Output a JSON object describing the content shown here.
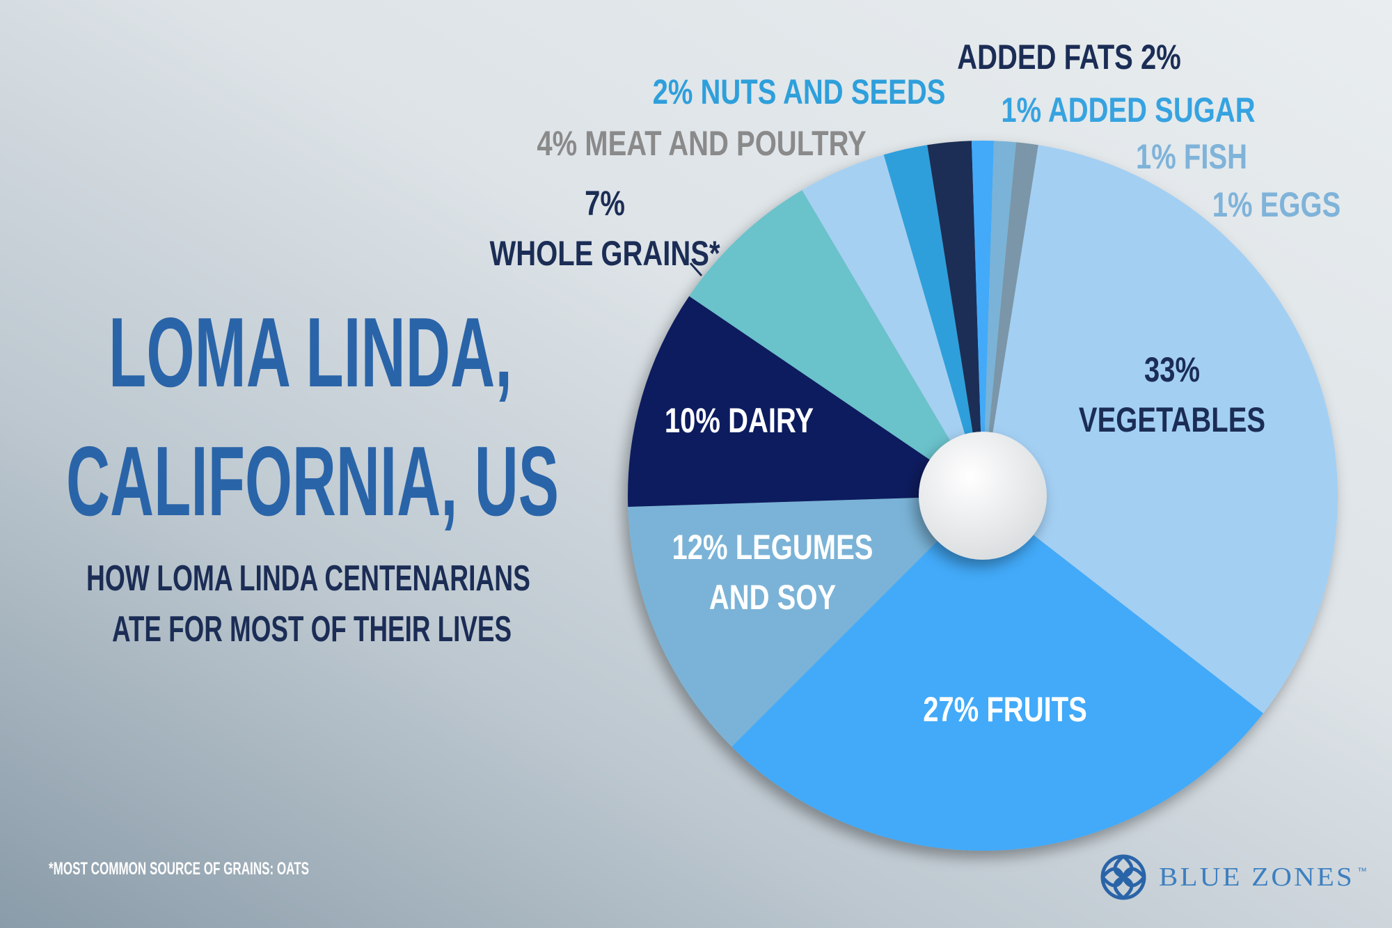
{
  "chart_data": {
    "type": "pie",
    "title": [
      "LOMA LINDA,",
      "CALIFORNIA, US"
    ],
    "subtitle": [
      "HOW LOMA LINDA CENTENARIANS",
      "ATE FOR MOST OF THEIR LIVES"
    ],
    "footnote": "*MOST COMMON SOURCE OF GRAINS: OATS",
    "categories": [
      "VEGETABLES",
      "FRUITS",
      "LEGUMES AND SOY",
      "DAIRY",
      "WHOLE GRAINS*",
      "MEAT AND POULTRY",
      "NUTS AND SEEDS",
      "ADDED FATS",
      "ADDED SUGAR",
      "FISH",
      "EGGS"
    ],
    "values": [
      33,
      27,
      12,
      10,
      7,
      4,
      2,
      2,
      1,
      1,
      1
    ],
    "value_labels": [
      "33%",
      "27%",
      "12%",
      "10%",
      "7%",
      "4%",
      "2%",
      "2%",
      "1%",
      "1%",
      "1%"
    ],
    "colors": [
      "#a3cff3",
      "#42aaf9",
      "#7ab3d7",
      "#0b1a5e",
      "#6ac2cb",
      "#a5d0f2",
      "#2e9fdb",
      "#1b2d55",
      "#42aaf9",
      "#7ab3d7",
      "#7a96a8"
    ],
    "logo": "BLUE ZONES",
    "logo_mark": "™"
  }
}
